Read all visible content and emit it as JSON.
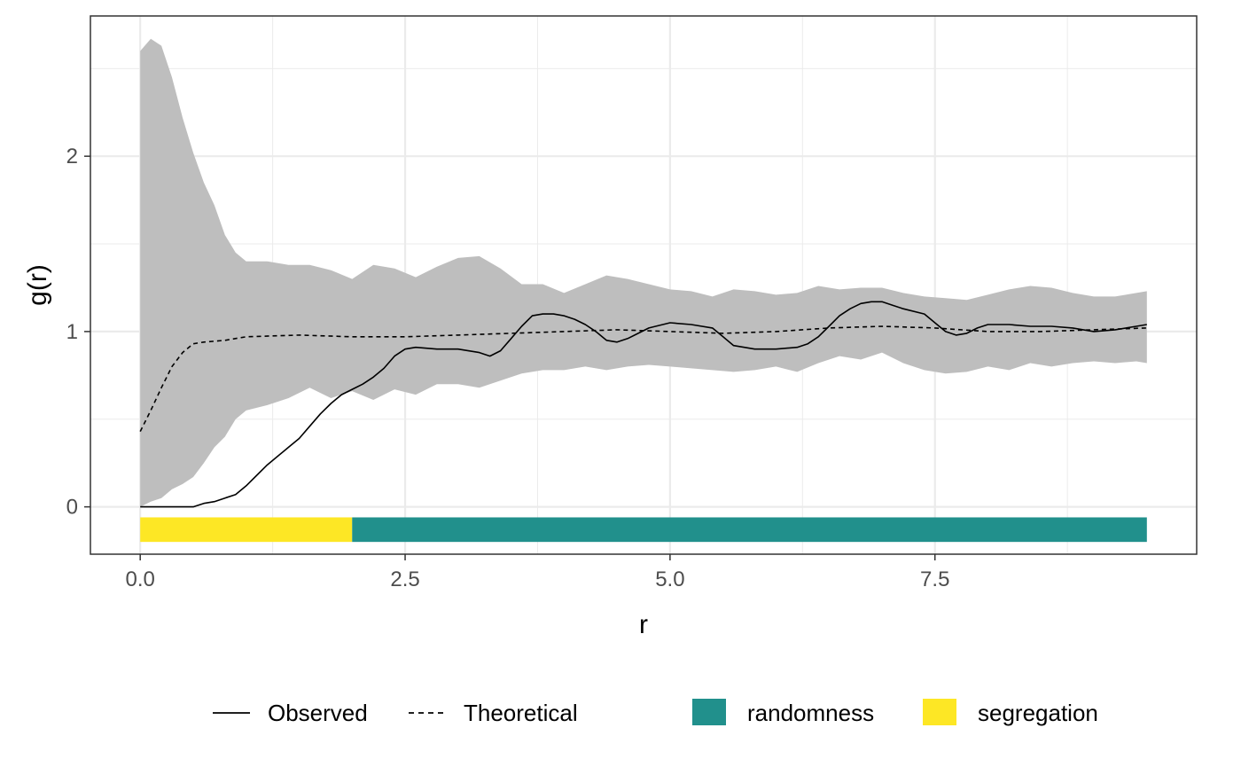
{
  "chart_data": {
    "type": "line",
    "xlabel": "r",
    "ylabel": "g(r)",
    "xlim": [
      -0.47,
      9.97
    ],
    "ylim": [
      -0.27,
      2.8
    ],
    "x_ticks": [
      0.0,
      2.5,
      5.0,
      7.5
    ],
    "x_tick_labels": [
      "0.0",
      "2.5",
      "5.0",
      "7.5"
    ],
    "y_ticks": [
      0,
      1,
      2
    ],
    "y_tick_labels": [
      "0",
      "1",
      "2"
    ],
    "grid": true,
    "legend_position": "bottom",
    "colors": {
      "envelope": "#bebebe",
      "line": "#000000",
      "randomness": "#21908c",
      "segregation": "#fde725",
      "grid": "#ebebeb",
      "panel_border": "#333333"
    },
    "series": [
      {
        "name": "Observed",
        "linetype": "solid",
        "x": [
          0.0,
          0.2,
          0.4,
          0.5,
          0.6,
          0.7,
          0.8,
          0.9,
          1.0,
          1.1,
          1.2,
          1.3,
          1.4,
          1.5,
          1.6,
          1.7,
          1.8,
          1.9,
          2.0,
          2.1,
          2.2,
          2.3,
          2.4,
          2.5,
          2.6,
          2.8,
          3.0,
          3.2,
          3.3,
          3.4,
          3.5,
          3.6,
          3.7,
          3.8,
          3.9,
          4.0,
          4.1,
          4.2,
          4.3,
          4.4,
          4.5,
          4.6,
          4.7,
          4.8,
          5.0,
          5.2,
          5.4,
          5.5,
          5.6,
          5.7,
          5.8,
          6.0,
          6.2,
          6.3,
          6.4,
          6.5,
          6.6,
          6.7,
          6.8,
          6.9,
          7.0,
          7.1,
          7.2,
          7.4,
          7.5,
          7.6,
          7.7,
          7.8,
          7.9,
          8.0,
          8.2,
          8.4,
          8.6,
          8.8,
          9.0,
          9.2,
          9.4,
          9.5
        ],
        "y": [
          0.0,
          0.0,
          0.0,
          0.0,
          0.02,
          0.03,
          0.05,
          0.07,
          0.12,
          0.18,
          0.24,
          0.29,
          0.34,
          0.39,
          0.46,
          0.53,
          0.59,
          0.64,
          0.67,
          0.7,
          0.74,
          0.79,
          0.86,
          0.9,
          0.91,
          0.9,
          0.9,
          0.88,
          0.86,
          0.89,
          0.96,
          1.03,
          1.09,
          1.1,
          1.1,
          1.09,
          1.07,
          1.04,
          1.0,
          0.95,
          0.94,
          0.96,
          0.99,
          1.02,
          1.05,
          1.04,
          1.02,
          0.97,
          0.92,
          0.91,
          0.9,
          0.9,
          0.91,
          0.93,
          0.97,
          1.03,
          1.09,
          1.13,
          1.16,
          1.17,
          1.17,
          1.15,
          1.13,
          1.1,
          1.05,
          1.0,
          0.98,
          0.99,
          1.02,
          1.04,
          1.04,
          1.03,
          1.03,
          1.02,
          1.0,
          1.01,
          1.03,
          1.04
        ]
      },
      {
        "name": "Theoretical",
        "linetype": "dashed",
        "x": [
          0.0,
          0.1,
          0.2,
          0.3,
          0.4,
          0.5,
          0.6,
          0.8,
          1.0,
          1.5,
          2.0,
          2.5,
          3.0,
          3.5,
          4.0,
          4.5,
          5.0,
          5.5,
          6.0,
          6.5,
          7.0,
          7.5,
          8.0,
          8.5,
          9.0,
          9.5
        ],
        "y": [
          0.43,
          0.55,
          0.68,
          0.8,
          0.88,
          0.93,
          0.94,
          0.95,
          0.97,
          0.98,
          0.97,
          0.97,
          0.98,
          0.99,
          1.0,
          1.01,
          1.0,
          0.99,
          1.0,
          1.02,
          1.03,
          1.02,
          1.0,
          1.0,
          1.01,
          1.02
        ]
      },
      {
        "name": "envelope",
        "type": "ribbon",
        "x": [
          0.0,
          0.1,
          0.2,
          0.3,
          0.4,
          0.5,
          0.6,
          0.7,
          0.8,
          0.9,
          1.0,
          1.2,
          1.4,
          1.6,
          1.8,
          2.0,
          2.2,
          2.4,
          2.6,
          2.8,
          3.0,
          3.2,
          3.4,
          3.6,
          3.8,
          4.0,
          4.2,
          4.4,
          4.6,
          4.8,
          5.0,
          5.2,
          5.4,
          5.6,
          5.8,
          6.0,
          6.2,
          6.4,
          6.6,
          6.8,
          7.0,
          7.2,
          7.4,
          7.6,
          7.8,
          8.0,
          8.2,
          8.4,
          8.6,
          8.8,
          9.0,
          9.2,
          9.4,
          9.5
        ],
        "upper": [
          2.6,
          2.67,
          2.63,
          2.45,
          2.22,
          2.02,
          1.85,
          1.72,
          1.55,
          1.45,
          1.4,
          1.4,
          1.38,
          1.38,
          1.35,
          1.3,
          1.38,
          1.36,
          1.31,
          1.37,
          1.42,
          1.43,
          1.36,
          1.27,
          1.27,
          1.22,
          1.27,
          1.32,
          1.3,
          1.27,
          1.24,
          1.23,
          1.2,
          1.24,
          1.23,
          1.21,
          1.22,
          1.26,
          1.24,
          1.25,
          1.25,
          1.22,
          1.2,
          1.19,
          1.18,
          1.21,
          1.24,
          1.26,
          1.25,
          1.22,
          1.2,
          1.2,
          1.22,
          1.23
        ],
        "lower": [
          0.0,
          0.03,
          0.05,
          0.1,
          0.13,
          0.17,
          0.25,
          0.34,
          0.4,
          0.5,
          0.55,
          0.58,
          0.62,
          0.68,
          0.62,
          0.66,
          0.61,
          0.67,
          0.64,
          0.7,
          0.7,
          0.68,
          0.72,
          0.76,
          0.78,
          0.78,
          0.8,
          0.78,
          0.8,
          0.81,
          0.8,
          0.79,
          0.78,
          0.77,
          0.78,
          0.8,
          0.77,
          0.82,
          0.86,
          0.84,
          0.88,
          0.82,
          0.78,
          0.76,
          0.77,
          0.8,
          0.78,
          0.82,
          0.8,
          0.82,
          0.83,
          0.82,
          0.83,
          0.82
        ]
      }
    ],
    "segments": [
      {
        "name": "segregation",
        "x_start": 0.0,
        "x_end": 2.0,
        "y_top": -0.06,
        "y_bottom": -0.2
      },
      {
        "name": "randomness",
        "x_start": 2.0,
        "x_end": 9.5,
        "y_top": -0.06,
        "y_bottom": -0.2
      }
    ],
    "legend": {
      "lines": [
        {
          "label": "Observed",
          "linetype": "solid"
        },
        {
          "label": "Theoretical",
          "linetype": "dashed"
        }
      ],
      "fills": [
        {
          "label": "randomness",
          "color": "#21908c"
        },
        {
          "label": "segregation",
          "color": "#fde725"
        }
      ]
    }
  }
}
